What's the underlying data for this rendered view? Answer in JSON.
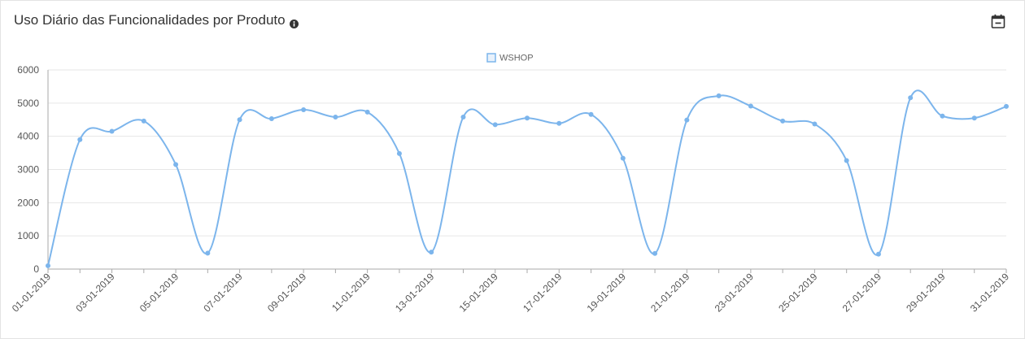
{
  "header": {
    "title": "Uso Diário das Funcionalidades por Produto",
    "info_icon": "info-circle-icon",
    "calendar_icon": "calendar-icon"
  },
  "colors": {
    "series_line": "#7cb5ec",
    "grid": "#e6e6e6",
    "axis": "#aaaaaa"
  },
  "chart_data": {
    "type": "line",
    "title": "",
    "xlabel": "",
    "ylabel": "",
    "ylim": [
      0,
      6000
    ],
    "yticks": [
      0,
      1000,
      2000,
      3000,
      4000,
      5000,
      6000
    ],
    "legend_position": "top-center",
    "grid": true,
    "smooth": true,
    "x": [
      "01-01-2019",
      "02-01-2019",
      "03-01-2019",
      "04-01-2019",
      "05-01-2019",
      "06-01-2019",
      "07-01-2019",
      "08-01-2019",
      "09-01-2019",
      "10-01-2019",
      "11-01-2019",
      "12-01-2019",
      "13-01-2019",
      "14-01-2019",
      "15-01-2019",
      "16-01-2019",
      "17-01-2019",
      "18-01-2019",
      "19-01-2019",
      "20-01-2019",
      "21-01-2019",
      "22-01-2019",
      "23-01-2019",
      "24-01-2019",
      "25-01-2019",
      "26-01-2019",
      "27-01-2019",
      "28-01-2019",
      "29-01-2019",
      "30-01-2019",
      "31-01-2019"
    ],
    "x_tick_labels": [
      "01-01-2019",
      "03-01-2019",
      "05-01-2019",
      "07-01-2019",
      "09-01-2019",
      "11-01-2019",
      "13-01-2019",
      "15-01-2019",
      "17-01-2019",
      "19-01-2019",
      "21-01-2019",
      "23-01-2019",
      "25-01-2019",
      "27-01-2019",
      "29-01-2019",
      "31-01-2019"
    ],
    "series": [
      {
        "name": "WSHOP",
        "values": [
          100,
          3900,
          4150,
          4460,
          3150,
          480,
          4500,
          4530,
          4800,
          4580,
          4730,
          3480,
          510,
          4580,
          4350,
          4550,
          4390,
          4660,
          3340,
          470,
          4490,
          5220,
          4910,
          4460,
          4370,
          3270,
          450,
          5160,
          4610,
          4550,
          4900
        ]
      }
    ]
  }
}
